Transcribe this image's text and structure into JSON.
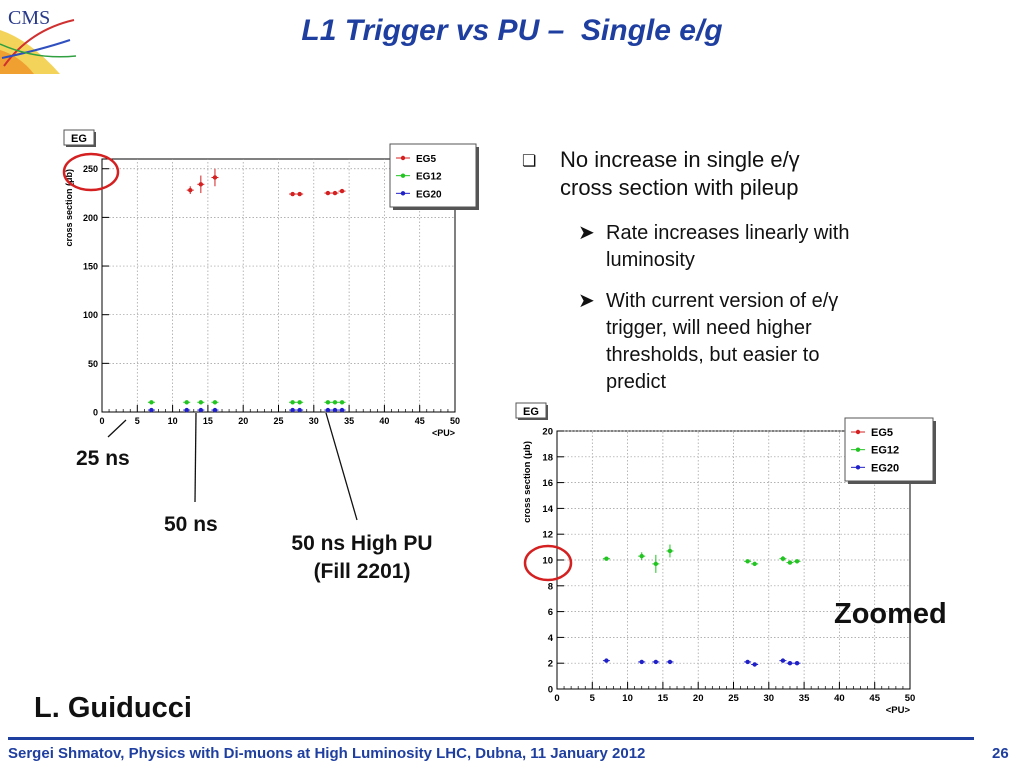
{
  "slide": {
    "title": "L1 Trigger vs PU –  Single e/g",
    "logo_text": "CMS",
    "bullets": {
      "main": [
        "No increase in single e/γ",
        "cross section with pileup"
      ],
      "sub1": [
        "Rate increases linearly with",
        "luminosity"
      ],
      "sub2": [
        "With current version of e/γ",
        "trigger, will need higher",
        "thresholds, but easier to",
        "predict"
      ]
    },
    "annotations": {
      "ann_25": "25 ns",
      "ann_50": "50 ns",
      "ann_high1": "50 ns High PU",
      "ann_high2": "(Fill 2201)",
      "zoomed": "Zoomed",
      "author": "L. Guiducci"
    },
    "footer": {
      "text": "Sergei Shmatov, Physics with Di-muons at High Luminosity LHC, Dubna, 11 January 2012",
      "page": "26"
    },
    "colors": {
      "title": "#1f3fa0",
      "eg5": "#d42020",
      "eg12": "#22c422",
      "eg20": "#2020c8",
      "circle": "#d42020"
    }
  },
  "chart_data": [
    {
      "type": "scatter",
      "title": "EG",
      "xlabel": "<PU>",
      "ylabel": "cross section (μb)",
      "xlim": [
        0,
        50
      ],
      "ylim": [
        0,
        260
      ],
      "xticks": [
        0,
        5,
        10,
        15,
        20,
        25,
        30,
        35,
        40,
        45,
        50
      ],
      "yticks": [
        0,
        50,
        100,
        150,
        200,
        250
      ],
      "grid": true,
      "legend": "top-right",
      "series": [
        {
          "name": "EG5",
          "color": "#d42020",
          "x": [
            12.5,
            14,
            16,
            27,
            28,
            32,
            33,
            34
          ],
          "y": [
            228,
            234,
            241,
            224,
            224,
            225,
            225,
            227
          ],
          "yerr": [
            4,
            9,
            9,
            1,
            1,
            1,
            1,
            1
          ]
        },
        {
          "name": "EG12",
          "color": "#22c422",
          "x": [
            7,
            12,
            14,
            16,
            27,
            28,
            32,
            33,
            34
          ],
          "y": [
            10,
            10,
            10,
            10,
            10,
            10,
            10,
            10,
            10
          ],
          "yerr": [
            0,
            0,
            0,
            0,
            0,
            0,
            0,
            0,
            0
          ]
        },
        {
          "name": "EG20",
          "color": "#2020c8",
          "x": [
            7,
            12,
            14,
            16,
            27,
            28,
            32,
            33,
            34
          ],
          "y": [
            2,
            2,
            2,
            2,
            2,
            2,
            2,
            2,
            2
          ],
          "yerr": [
            0,
            0,
            0,
            0,
            0,
            0,
            0,
            0,
            0
          ]
        }
      ]
    },
    {
      "type": "scatter",
      "title": "EG",
      "xlabel": "<PU>",
      "ylabel": "cross section (μb)",
      "xlim": [
        0,
        50
      ],
      "ylim": [
        0,
        20
      ],
      "xticks": [
        0,
        5,
        10,
        15,
        20,
        25,
        30,
        35,
        40,
        45,
        50
      ],
      "yticks": [
        0,
        2,
        4,
        6,
        8,
        10,
        12,
        14,
        16,
        18,
        20
      ],
      "grid": true,
      "legend": "top-right",
      "series": [
        {
          "name": "EG5",
          "color": "#d42020",
          "x": [],
          "y": [],
          "yerr": []
        },
        {
          "name": "EG12",
          "color": "#22c422",
          "x": [
            7,
            12,
            14,
            16,
            27,
            28,
            32,
            33,
            34
          ],
          "y": [
            10.1,
            10.3,
            9.7,
            10.7,
            9.9,
            9.7,
            10.1,
            9.8,
            9.9
          ],
          "yerr": [
            0.1,
            0.3,
            0.7,
            0.5,
            0.1,
            0.1,
            0.2,
            0.1,
            0.1
          ]
        },
        {
          "name": "EG20",
          "color": "#2020c8",
          "x": [
            7,
            12,
            14,
            16,
            27,
            28,
            32,
            33,
            34
          ],
          "y": [
            2.2,
            2.1,
            2.1,
            2.1,
            2.1,
            1.9,
            2.2,
            2.0,
            2.0
          ],
          "yerr": [
            0.05,
            0.05,
            0.05,
            0.05,
            0.05,
            0.05,
            0.05,
            0.05,
            0.05
          ]
        }
      ]
    }
  ]
}
